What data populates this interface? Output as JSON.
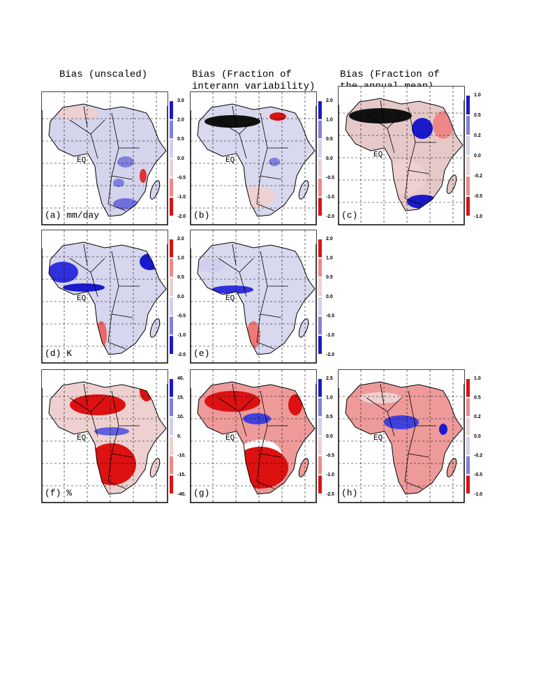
{
  "columns": [
    {
      "lines": [
        "Bias (unscaled)"
      ]
    },
    {
      "lines": [
        "Bias (Fraction of",
        "interann variability)"
      ]
    },
    {
      "lines": [
        "Bias (Fraction of",
        "the annual mean)"
      ]
    }
  ],
  "map_labels": {
    "equator": "EQ"
  },
  "panels": [
    {
      "label": "(a) mm/day",
      "colorbar": {
        "labels": [
          "3.0",
          "2.0",
          "0.5",
          "0.0",
          "-0.5",
          "-1.0",
          "-2.0"
        ],
        "colors": [
          "#1a1acc",
          "#8080dd",
          "#d0d0ee",
          "#eed0d0",
          "#ee8888",
          "#dd1111"
        ]
      }
    },
    {
      "label": "(b)",
      "colorbar": {
        "labels": [
          "2.0",
          "1.0",
          "0.5",
          "0.0",
          "-0.5",
          "-1.0",
          "-2.0"
        ],
        "colors": [
          "#1a1acc",
          "#8080dd",
          "#d0d0ee",
          "#eed0d0",
          "#ee8888",
          "#dd1111"
        ]
      }
    },
    {
      "label": "(c)",
      "colorbar": {
        "labels": [
          "1.0",
          "0.5",
          "0.2",
          "0.0",
          "-0.2",
          "-0.5",
          "-1.0"
        ],
        "colors": [
          "#1a1acc",
          "#8080dd",
          "#d0d0ee",
          "#eed0d0",
          "#ee8888",
          "#dd1111"
        ]
      }
    },
    {
      "label": "(d) K",
      "colorbar": {
        "labels": [
          "2.0",
          "1.0",
          "0.5",
          "0.0",
          "-0.5",
          "-1.0",
          "-2.0"
        ],
        "colors": [
          "#dd1111",
          "#ee8888",
          "#eed0d0",
          "#d0d0ee",
          "#8080dd",
          "#1a1acc"
        ]
      }
    },
    {
      "label": "(e)",
      "colorbar": {
        "labels": [
          "2.0",
          "1.0",
          "0.5",
          "0.0",
          "-0.5",
          "-1.0",
          "-2.0"
        ],
        "colors": [
          "#dd1111",
          "#ee8888",
          "#eed0d0",
          "#d0d0ee",
          "#8080dd",
          "#1a1acc"
        ]
      }
    },
    {
      "label": "(f) %",
      "colorbar": {
        "labels": [
          "40.",
          "15.",
          "10.",
          "0.",
          "-10.",
          "-15.",
          "-40."
        ],
        "colors": [
          "#1a1acc",
          "#8080dd",
          "#d0d0ee",
          "#eed0d0",
          "#ee8888",
          "#dd1111"
        ]
      }
    },
    {
      "label": "(g)",
      "colorbar": {
        "labels": [
          "2.5",
          "1.0",
          "0.5",
          "0.0",
          "-0.5",
          "-1.0",
          "-2.5"
        ],
        "colors": [
          "#1a1acc",
          "#8080dd",
          "#d0d0ee",
          "#eed0d0",
          "#ee8888",
          "#dd1111"
        ]
      }
    },
    {
      "label": "(h)",
      "colorbar": {
        "labels": [
          "1.0",
          "0.5",
          "0.2",
          "0.0",
          "-0.2",
          "-0.5",
          "-1.0"
        ],
        "colors": [
          "#dd1111",
          "#ee8888",
          "#eed0d0",
          "#d0d0ee",
          "#8080dd",
          "#dd1111"
        ]
      }
    }
  ]
}
